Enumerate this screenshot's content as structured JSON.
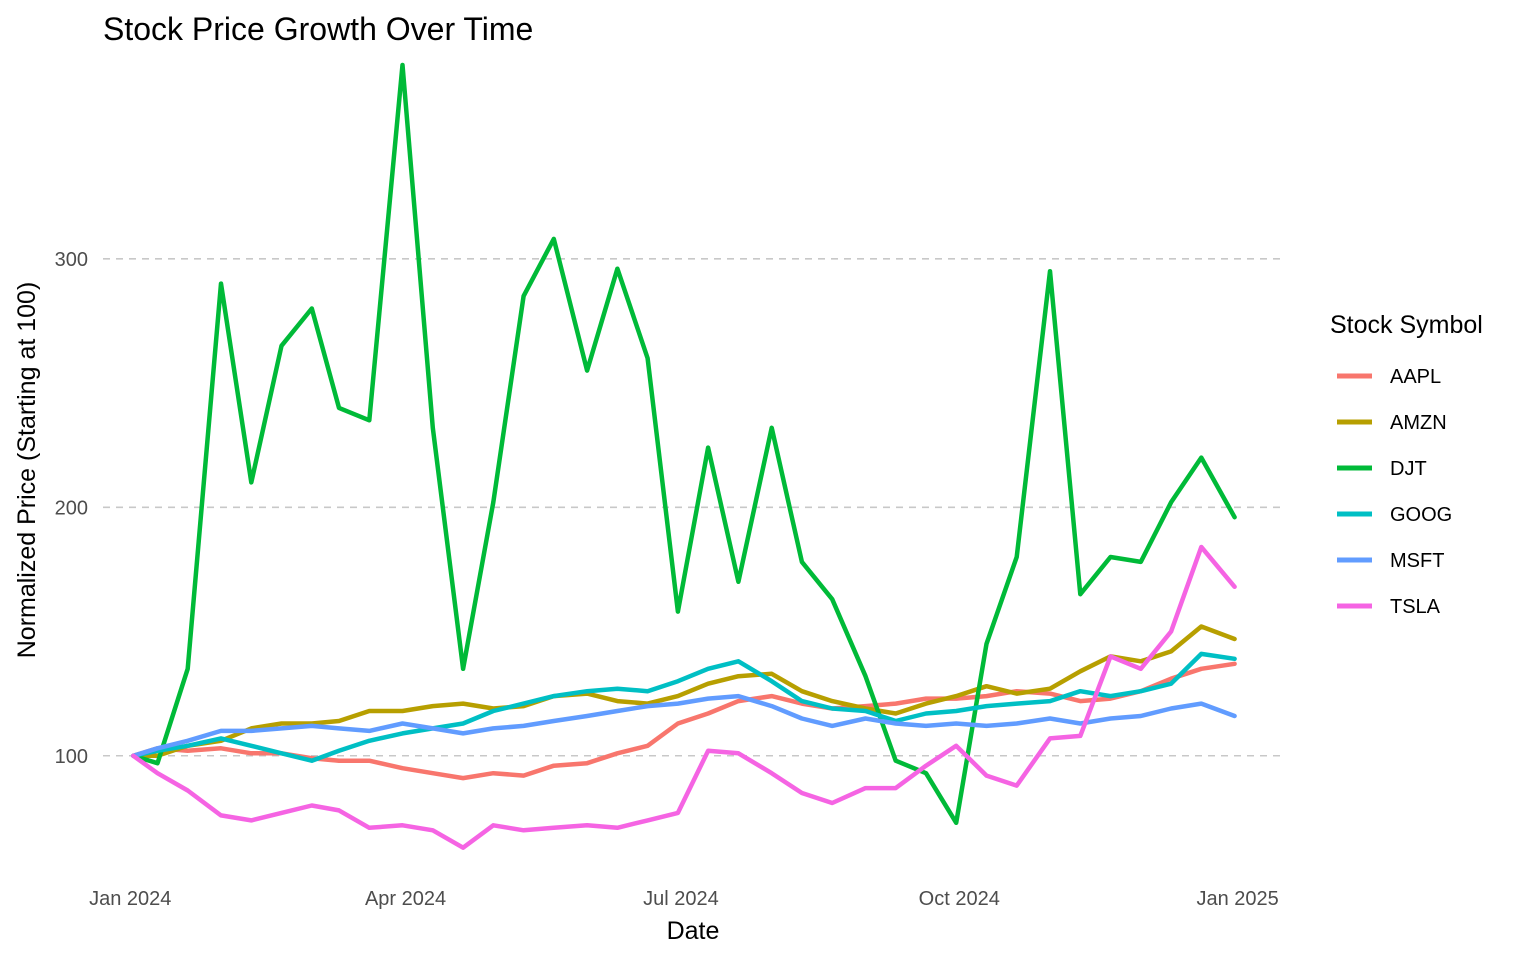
{
  "chart_data": {
    "type": "line",
    "title": "Stock Price Growth Over Time",
    "xlabel": "Date",
    "ylabel": "Normalized Price (Starting at 100)",
    "x_ticks": [
      {
        "date": "2024-01-01",
        "label": "Jan 2024"
      },
      {
        "date": "2024-04-01",
        "label": "Apr 2024"
      },
      {
        "date": "2024-07-01",
        "label": "Jul 2024"
      },
      {
        "date": "2024-10-01",
        "label": "Oct 2024"
      },
      {
        "date": "2025-01-01",
        "label": "Jan 2025"
      }
    ],
    "y_ticks": [
      100,
      200,
      300
    ],
    "xlim": [
      "2023-12-23",
      "2025-01-16"
    ],
    "ylim": [
      50,
      380
    ],
    "grid": "horizontal major, dashed",
    "legend": {
      "title": "Stock Symbol",
      "position": "right"
    },
    "series": [
      {
        "name": "AAPL",
        "color": "#F8766D",
        "points": [
          [
            "2024-01-02",
            100
          ],
          [
            "2024-01-10",
            103
          ],
          [
            "2024-01-20",
            102
          ],
          [
            "2024-01-31",
            103
          ],
          [
            "2024-02-10",
            101
          ],
          [
            "2024-02-20",
            101
          ],
          [
            "2024-03-01",
            99
          ],
          [
            "2024-03-10",
            98
          ],
          [
            "2024-03-20",
            98
          ],
          [
            "2024-03-31",
            95
          ],
          [
            "2024-04-10",
            93
          ],
          [
            "2024-04-20",
            91
          ],
          [
            "2024-04-30",
            93
          ],
          [
            "2024-05-10",
            92
          ],
          [
            "2024-05-20",
            96
          ],
          [
            "2024-05-31",
            97
          ],
          [
            "2024-06-10",
            101
          ],
          [
            "2024-06-20",
            104
          ],
          [
            "2024-06-30",
            113
          ],
          [
            "2024-07-10",
            117
          ],
          [
            "2024-07-20",
            122
          ],
          [
            "2024-07-31",
            124
          ],
          [
            "2024-08-10",
            121
          ],
          [
            "2024-08-20",
            119
          ],
          [
            "2024-08-31",
            120
          ],
          [
            "2024-09-10",
            121
          ],
          [
            "2024-09-20",
            123
          ],
          [
            "2024-09-30",
            123
          ],
          [
            "2024-10-10",
            124
          ],
          [
            "2024-10-20",
            126
          ],
          [
            "2024-10-31",
            125
          ],
          [
            "2024-11-10",
            122
          ],
          [
            "2024-11-20",
            123
          ],
          [
            "2024-11-30",
            126
          ],
          [
            "2024-12-10",
            131
          ],
          [
            "2024-12-20",
            135
          ],
          [
            "2024-12-31",
            137
          ]
        ]
      },
      {
        "name": "AMZN",
        "color": "#B79F00",
        "points": [
          [
            "2024-01-02",
            100
          ],
          [
            "2024-01-10",
            100
          ],
          [
            "2024-01-20",
            104
          ],
          [
            "2024-01-31",
            106
          ],
          [
            "2024-02-10",
            111
          ],
          [
            "2024-02-20",
            113
          ],
          [
            "2024-03-01",
            113
          ],
          [
            "2024-03-10",
            114
          ],
          [
            "2024-03-20",
            118
          ],
          [
            "2024-03-31",
            118
          ],
          [
            "2024-04-10",
            120
          ],
          [
            "2024-04-20",
            121
          ],
          [
            "2024-04-30",
            119
          ],
          [
            "2024-05-10",
            120
          ],
          [
            "2024-05-20",
            124
          ],
          [
            "2024-05-31",
            125
          ],
          [
            "2024-06-10",
            122
          ],
          [
            "2024-06-20",
            121
          ],
          [
            "2024-06-30",
            124
          ],
          [
            "2024-07-10",
            129
          ],
          [
            "2024-07-20",
            132
          ],
          [
            "2024-07-31",
            133
          ],
          [
            "2024-08-10",
            126
          ],
          [
            "2024-08-20",
            122
          ],
          [
            "2024-08-31",
            119
          ],
          [
            "2024-09-10",
            117
          ],
          [
            "2024-09-20",
            121
          ],
          [
            "2024-09-30",
            124
          ],
          [
            "2024-10-10",
            128
          ],
          [
            "2024-10-20",
            125
          ],
          [
            "2024-10-31",
            127
          ],
          [
            "2024-11-10",
            134
          ],
          [
            "2024-11-20",
            140
          ],
          [
            "2024-11-30",
            138
          ],
          [
            "2024-12-10",
            142
          ],
          [
            "2024-12-20",
            152
          ],
          [
            "2024-12-31",
            147
          ]
        ]
      },
      {
        "name": "DJT",
        "color": "#00BA38",
        "points": [
          [
            "2024-01-02",
            100
          ],
          [
            "2024-01-10",
            97
          ],
          [
            "2024-01-20",
            135
          ],
          [
            "2024-01-31",
            290
          ],
          [
            "2024-02-10",
            210
          ],
          [
            "2024-02-20",
            265
          ],
          [
            "2024-03-01",
            280
          ],
          [
            "2024-03-10",
            240
          ],
          [
            "2024-03-20",
            235
          ],
          [
            "2024-03-31",
            378
          ],
          [
            "2024-04-10",
            232
          ],
          [
            "2024-04-20",
            135
          ],
          [
            "2024-04-30",
            202
          ],
          [
            "2024-05-10",
            285
          ],
          [
            "2024-05-20",
            308
          ],
          [
            "2024-05-31",
            255
          ],
          [
            "2024-06-10",
            296
          ],
          [
            "2024-06-20",
            260
          ],
          [
            "2024-06-30",
            158
          ],
          [
            "2024-07-10",
            224
          ],
          [
            "2024-07-20",
            170
          ],
          [
            "2024-07-31",
            232
          ],
          [
            "2024-08-10",
            178
          ],
          [
            "2024-08-20",
            163
          ],
          [
            "2024-08-31",
            132
          ],
          [
            "2024-09-10",
            98
          ],
          [
            "2024-09-20",
            93
          ],
          [
            "2024-09-30",
            73
          ],
          [
            "2024-10-10",
            145
          ],
          [
            "2024-10-20",
            180
          ],
          [
            "2024-10-31",
            295
          ],
          [
            "2024-11-10",
            165
          ],
          [
            "2024-11-20",
            180
          ],
          [
            "2024-11-30",
            178
          ],
          [
            "2024-12-10",
            202
          ],
          [
            "2024-12-20",
            220
          ],
          [
            "2024-12-31",
            196
          ]
        ]
      },
      {
        "name": "GOOG",
        "color": "#00BFC4",
        "points": [
          [
            "2024-01-02",
            100
          ],
          [
            "2024-01-10",
            102
          ],
          [
            "2024-01-20",
            104
          ],
          [
            "2024-01-31",
            107
          ],
          [
            "2024-02-10",
            104
          ],
          [
            "2024-02-20",
            101
          ],
          [
            "2024-03-01",
            98
          ],
          [
            "2024-03-10",
            102
          ],
          [
            "2024-03-20",
            106
          ],
          [
            "2024-03-31",
            109
          ],
          [
            "2024-04-10",
            111
          ],
          [
            "2024-04-20",
            113
          ],
          [
            "2024-04-30",
            118
          ],
          [
            "2024-05-10",
            121
          ],
          [
            "2024-05-20",
            124
          ],
          [
            "2024-05-31",
            126
          ],
          [
            "2024-06-10",
            127
          ],
          [
            "2024-06-20",
            126
          ],
          [
            "2024-06-30",
            130
          ],
          [
            "2024-07-10",
            135
          ],
          [
            "2024-07-20",
            138
          ],
          [
            "2024-07-31",
            130
          ],
          [
            "2024-08-10",
            122
          ],
          [
            "2024-08-20",
            119
          ],
          [
            "2024-08-31",
            118
          ],
          [
            "2024-09-10",
            114
          ],
          [
            "2024-09-20",
            117
          ],
          [
            "2024-09-30",
            118
          ],
          [
            "2024-10-10",
            120
          ],
          [
            "2024-10-20",
            121
          ],
          [
            "2024-10-31",
            122
          ],
          [
            "2024-11-10",
            126
          ],
          [
            "2024-11-20",
            124
          ],
          [
            "2024-11-30",
            126
          ],
          [
            "2024-12-10",
            129
          ],
          [
            "2024-12-20",
            141
          ],
          [
            "2024-12-31",
            139
          ]
        ]
      },
      {
        "name": "MSFT",
        "color": "#619CFF",
        "points": [
          [
            "2024-01-02",
            100
          ],
          [
            "2024-01-10",
            103
          ],
          [
            "2024-01-20",
            106
          ],
          [
            "2024-01-31",
            110
          ],
          [
            "2024-02-10",
            110
          ],
          [
            "2024-02-20",
            111
          ],
          [
            "2024-03-01",
            112
          ],
          [
            "2024-03-10",
            111
          ],
          [
            "2024-03-20",
            110
          ],
          [
            "2024-03-31",
            113
          ],
          [
            "2024-04-10",
            111
          ],
          [
            "2024-04-20",
            109
          ],
          [
            "2024-04-30",
            111
          ],
          [
            "2024-05-10",
            112
          ],
          [
            "2024-05-20",
            114
          ],
          [
            "2024-05-31",
            116
          ],
          [
            "2024-06-10",
            118
          ],
          [
            "2024-06-20",
            120
          ],
          [
            "2024-06-30",
            121
          ],
          [
            "2024-07-10",
            123
          ],
          [
            "2024-07-20",
            124
          ],
          [
            "2024-07-31",
            120
          ],
          [
            "2024-08-10",
            115
          ],
          [
            "2024-08-20",
            112
          ],
          [
            "2024-08-31",
            115
          ],
          [
            "2024-09-10",
            113
          ],
          [
            "2024-09-20",
            112
          ],
          [
            "2024-09-30",
            113
          ],
          [
            "2024-10-10",
            112
          ],
          [
            "2024-10-20",
            113
          ],
          [
            "2024-10-31",
            115
          ],
          [
            "2024-11-10",
            113
          ],
          [
            "2024-11-20",
            115
          ],
          [
            "2024-11-30",
            116
          ],
          [
            "2024-12-10",
            119
          ],
          [
            "2024-12-20",
            121
          ],
          [
            "2024-12-31",
            116
          ]
        ]
      },
      {
        "name": "TSLA",
        "color": "#F564E3",
        "points": [
          [
            "2024-01-02",
            100
          ],
          [
            "2024-01-10",
            93
          ],
          [
            "2024-01-20",
            86
          ],
          [
            "2024-01-31",
            76
          ],
          [
            "2024-02-10",
            74
          ],
          [
            "2024-02-20",
            77
          ],
          [
            "2024-03-01",
            80
          ],
          [
            "2024-03-10",
            78
          ],
          [
            "2024-03-20",
            71
          ],
          [
            "2024-03-31",
            72
          ],
          [
            "2024-04-10",
            70
          ],
          [
            "2024-04-20",
            63
          ],
          [
            "2024-04-30",
            72
          ],
          [
            "2024-05-10",
            70
          ],
          [
            "2024-05-20",
            71
          ],
          [
            "2024-05-31",
            72
          ],
          [
            "2024-06-10",
            71
          ],
          [
            "2024-06-20",
            74
          ],
          [
            "2024-06-30",
            77
          ],
          [
            "2024-07-10",
            102
          ],
          [
            "2024-07-20",
            101
          ],
          [
            "2024-07-31",
            93
          ],
          [
            "2024-08-10",
            85
          ],
          [
            "2024-08-20",
            81
          ],
          [
            "2024-08-31",
            87
          ],
          [
            "2024-09-10",
            87
          ],
          [
            "2024-09-20",
            96
          ],
          [
            "2024-09-30",
            104
          ],
          [
            "2024-10-10",
            92
          ],
          [
            "2024-10-20",
            88
          ],
          [
            "2024-10-31",
            107
          ],
          [
            "2024-11-10",
            108
          ],
          [
            "2024-11-20",
            140
          ],
          [
            "2024-11-30",
            135
          ],
          [
            "2024-12-10",
            150
          ],
          [
            "2024-12-20",
            184
          ],
          [
            "2024-12-31",
            168
          ]
        ]
      }
    ]
  }
}
